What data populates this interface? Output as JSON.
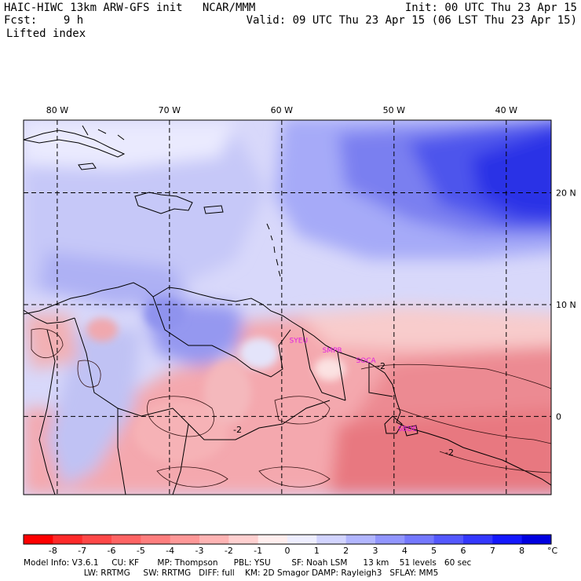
{
  "header": {
    "line1_left": "HAIC-HIWC 13km ARW-GFS init   NCAR/MMM",
    "line1_right": "Init: 00 UTC Thu 23 Apr 15",
    "line2_left": "Fcst:    9 h",
    "line2_right": "Valid: 09 UTC Thu 23 Apr 15 (06 LST Thu 23 Apr 15)",
    "field": "Lifted index"
  },
  "map": {
    "lon_labels": [
      "80 W",
      "70 W",
      "60 W",
      "50 W",
      "40 W"
    ],
    "lon_values": [
      -80,
      -70,
      -60,
      -50,
      -40
    ],
    "lat_labels": [
      "20 N",
      "10 N",
      "0"
    ],
    "lat_values": [
      20,
      10,
      0
    ],
    "lon_range": [
      -83,
      -36
    ],
    "lat_range": [
      -7,
      26.5
    ],
    "contour_labels": [
      "-2",
      "-2",
      "-2"
    ],
    "stations": [
      {
        "name": "SYEU",
        "lon": -58.5,
        "lat": 6.6
      },
      {
        "name": "SMPR",
        "lon": -55.5,
        "lat": 5.7
      },
      {
        "name": "SOCA",
        "lon": -52.5,
        "lat": 4.8
      },
      {
        "name": "SBDE",
        "lon": -48.8,
        "lat": -1.3
      }
    ],
    "colors": {
      "station": "#e020e0",
      "coast": "#000000",
      "grid": "#000000"
    }
  },
  "colorbar": {
    "ticks": [
      "-8",
      "-7",
      "-6",
      "-5",
      "-4",
      "-3",
      "-2",
      "-1",
      "0",
      "1",
      "2",
      "3",
      "4",
      "5",
      "6",
      "7",
      "8"
    ],
    "unit": "°C",
    "colors": [
      "#ff0000",
      "#ff2a2a",
      "#ff4848",
      "#ff6464",
      "#ff7e7e",
      "#ff9898",
      "#ffb4b4",
      "#ffd0d0",
      "#ffeeee",
      "#eeeeff",
      "#d2d4ff",
      "#b2b6ff",
      "#9296ff",
      "#7478ff",
      "#5458ff",
      "#3438ff",
      "#1418ff",
      "#0000e0"
    ]
  },
  "model_info": {
    "line1": "Model Info: V3.6.1     CU: KF       MP: Thompson      PBL: YSU        SF: Noah LSM      13 km    51 levels   60 sec",
    "line2": "                       LW: RRTMG     SW: RRTMG   DIFF: full    KM: 2D Smagor DAMP: Rayleigh3   SFLAY: MM5"
  }
}
